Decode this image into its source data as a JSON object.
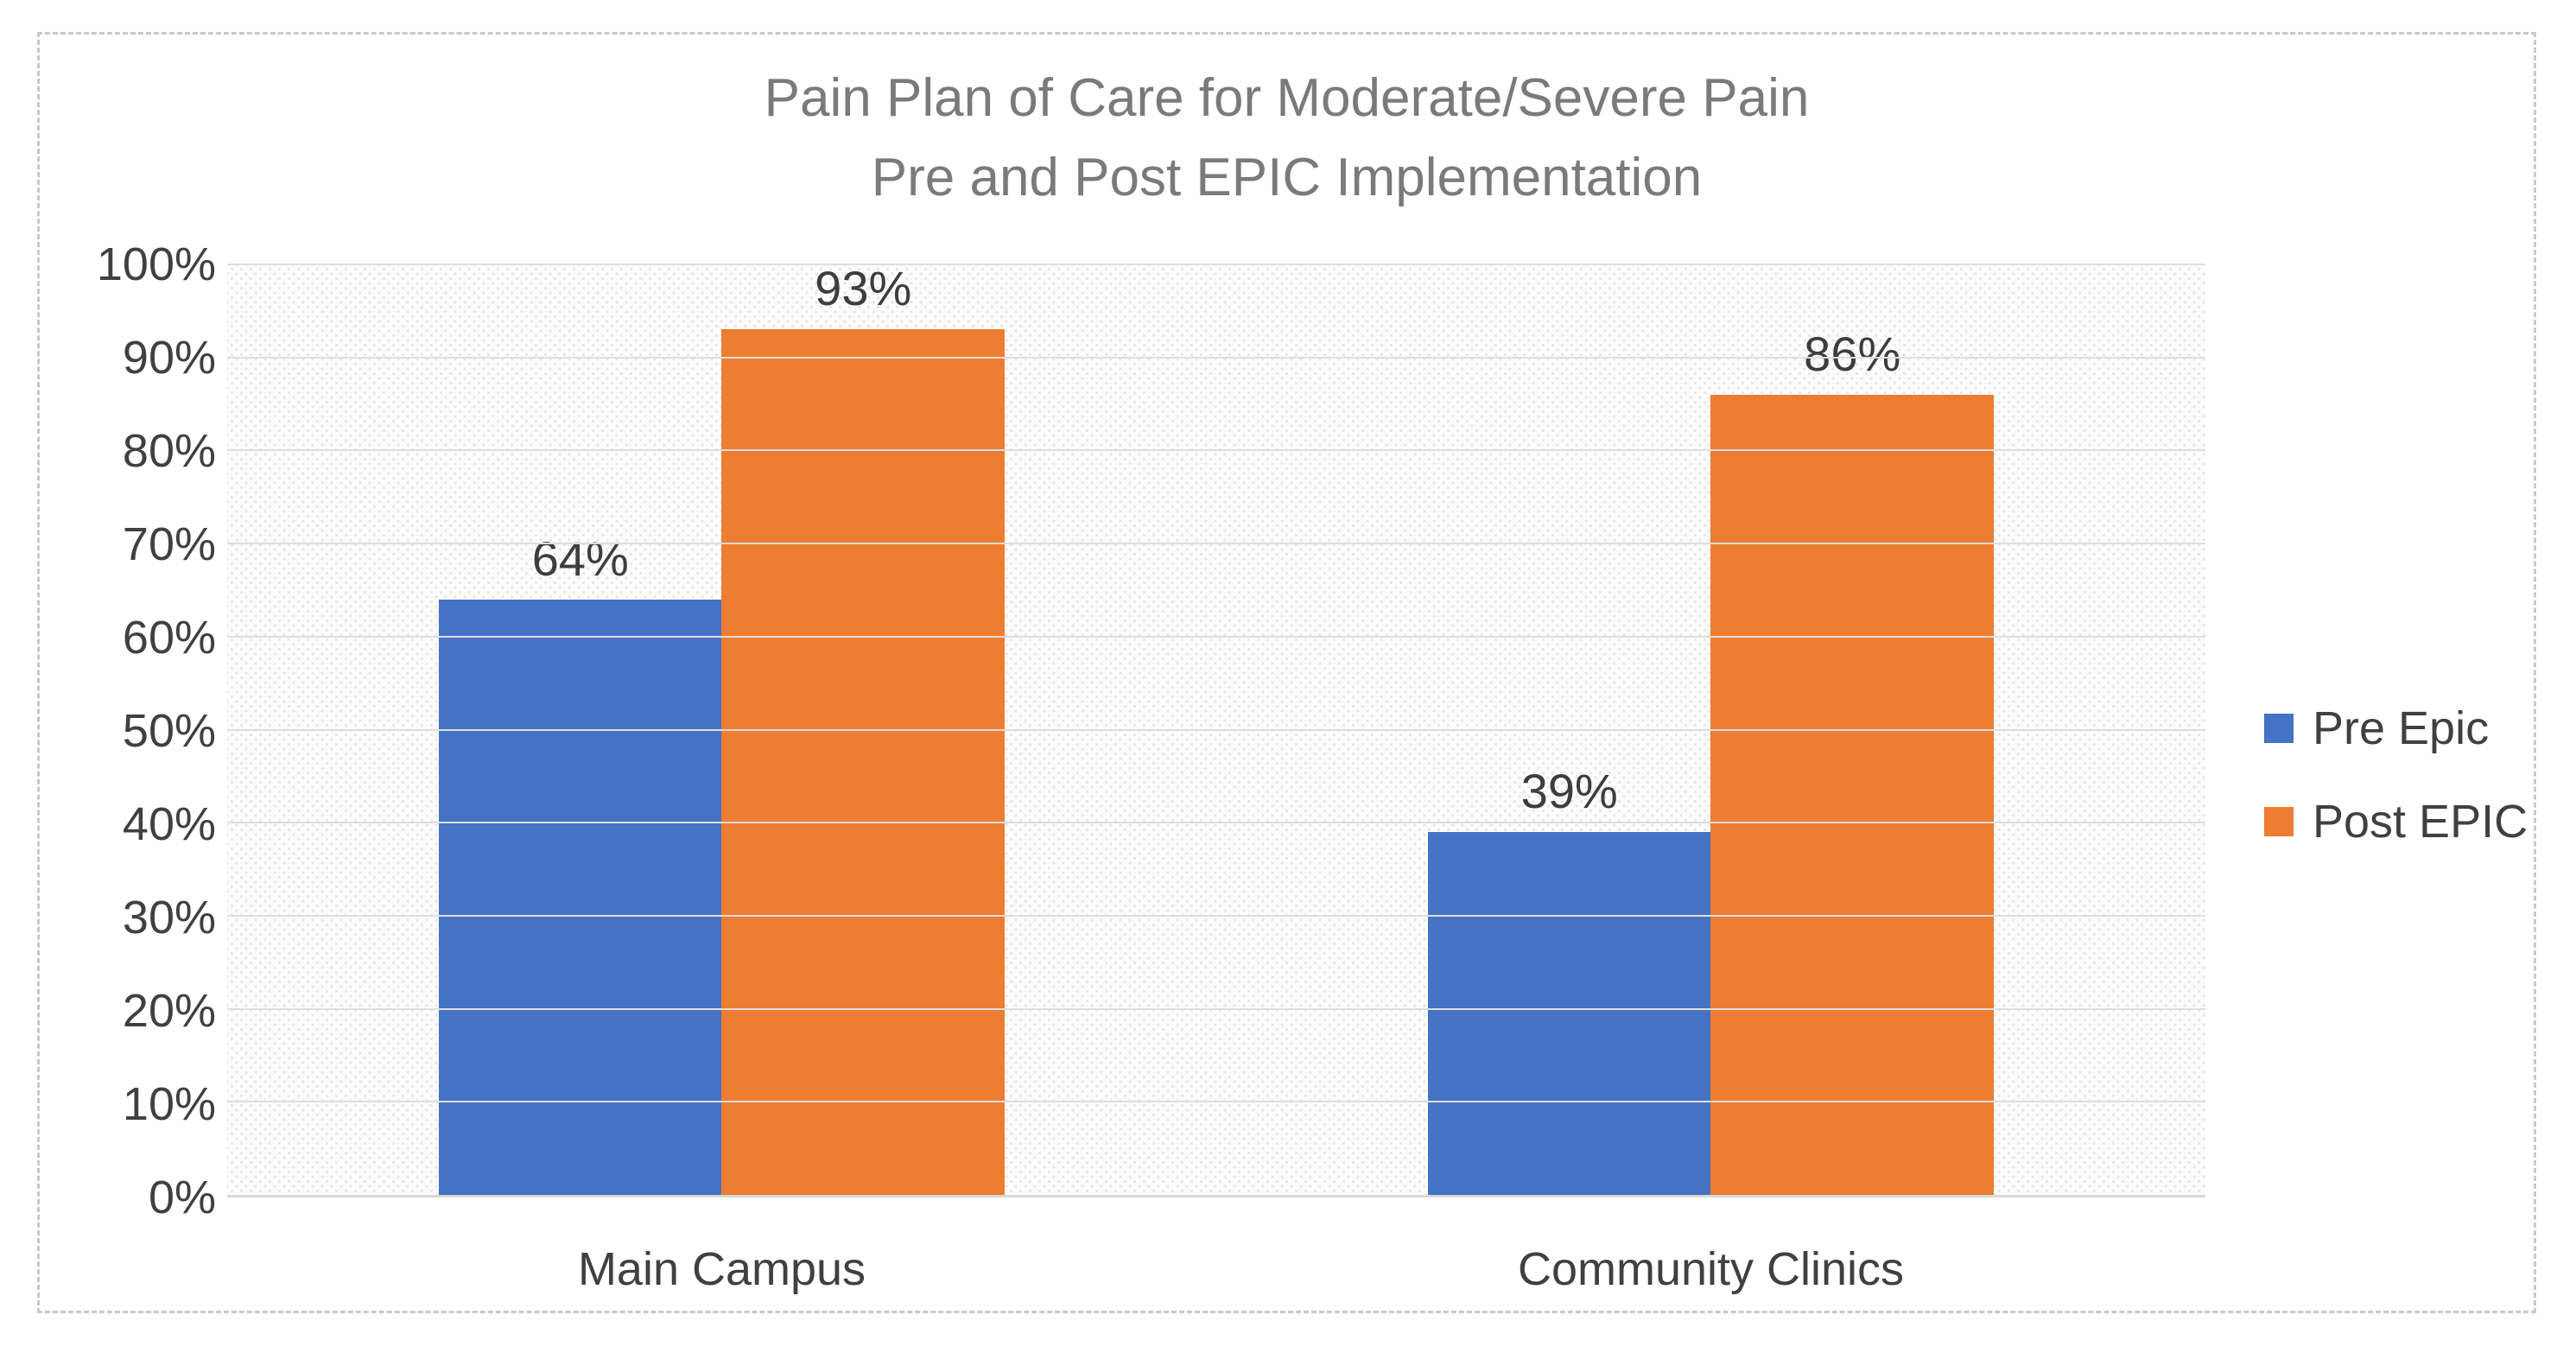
{
  "chart_data": {
    "type": "bar",
    "title": "Pain Plan of Care for Moderate/Severe Pain Pre and Post EPIC Implementation",
    "title_lines": [
      "Pain Plan of Care for Moderate/Severe Pain",
      "Pre and Post EPIC Implementation"
    ],
    "categories": [
      "Main Campus",
      "Community Clinics"
    ],
    "series": [
      {
        "name": "Pre Epic",
        "color": "#4472C4",
        "values": [
          64,
          39
        ]
      },
      {
        "name": "Post EPIC",
        "color": "#ED7D31",
        "values": [
          93,
          86
        ]
      }
    ],
    "data_labels": [
      [
        "64%",
        "39%"
      ],
      [
        "93%",
        "86%"
      ]
    ],
    "y_axis": {
      "min": 0,
      "max": 100,
      "step": 10,
      "suffix": "%",
      "tick_labels": [
        "0%",
        "10%",
        "20%",
        "30%",
        "40%",
        "50%",
        "60%",
        "70%",
        "80%",
        "90%",
        "100%"
      ]
    },
    "ylim": [
      0,
      100
    ],
    "grid": true,
    "legend_position": "right",
    "plot_background": "dotted-texture",
    "colors": {
      "title_text": "#7a7a7a",
      "axis_text": "#404040",
      "gridline": "#dedede",
      "series_blue": "#4472C4",
      "series_orange": "#ED7D31"
    }
  }
}
